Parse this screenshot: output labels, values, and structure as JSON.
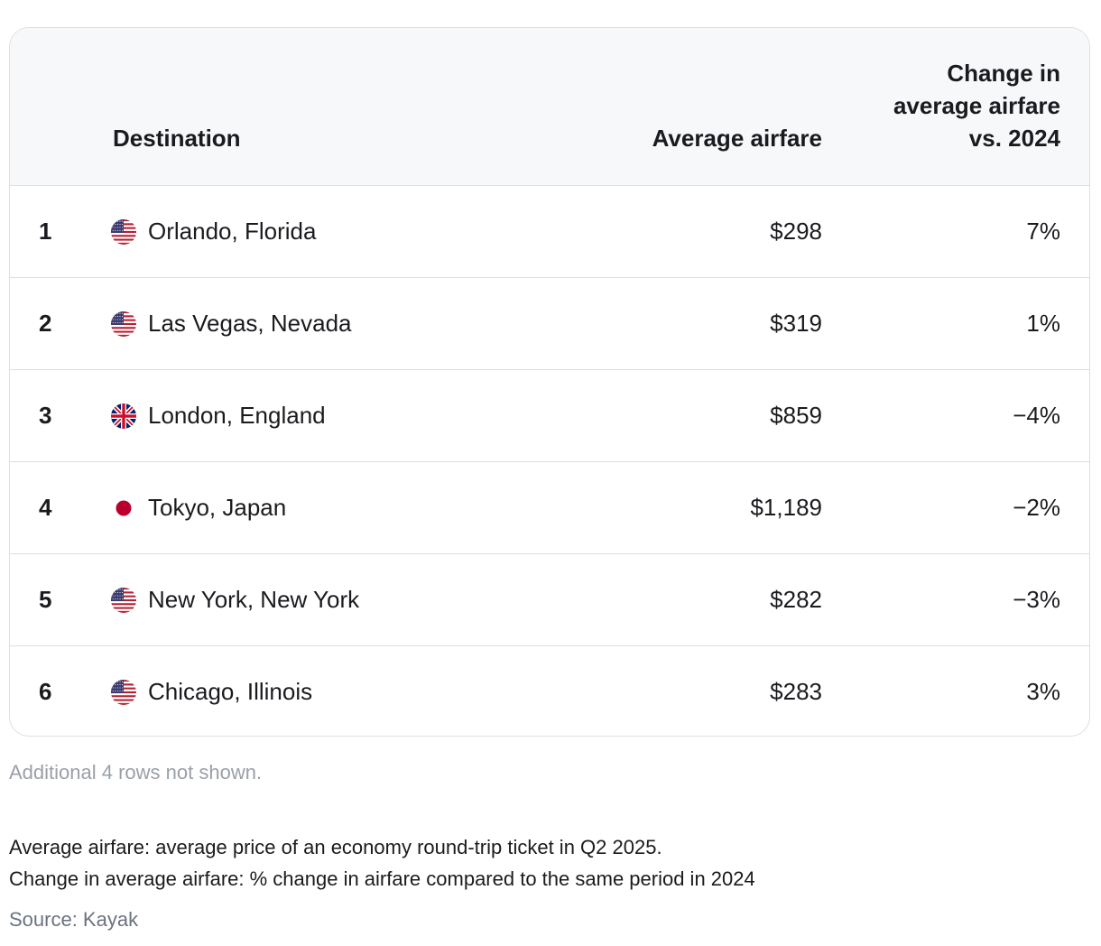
{
  "chart_data": {
    "type": "table",
    "columns": [
      "",
      "Destination",
      "Average airfare",
      "Change in average airfare vs. 2024"
    ],
    "header": {
      "destination": "Destination",
      "average_airfare": "Average airfare",
      "change_line1": "Change in",
      "change_line2": "average airfare",
      "change_line3": "vs. 2024"
    },
    "rows": [
      {
        "rank": "1",
        "flag": "us-flag-icon",
        "destination": "Orlando, Florida",
        "average_airfare": "$298",
        "change": "7%"
      },
      {
        "rank": "2",
        "flag": "us-flag-icon",
        "destination": "Las Vegas, Nevada",
        "average_airfare": "$319",
        "change": "1%"
      },
      {
        "rank": "3",
        "flag": "uk-flag-icon",
        "destination": "London, England",
        "average_airfare": "$859",
        "change": "−4%"
      },
      {
        "rank": "4",
        "flag": "japan-flag-icon",
        "destination": "Tokyo, Japan",
        "average_airfare": "$1,189",
        "change": "−2%"
      },
      {
        "rank": "5",
        "flag": "us-flag-icon",
        "destination": "New York, New York",
        "average_airfare": "$282",
        "change": "−3%"
      },
      {
        "rank": "6",
        "flag": "us-flag-icon",
        "destination": "Chicago, Illinois",
        "average_airfare": "$283",
        "change": "3%"
      }
    ]
  },
  "notes": {
    "rows_hidden": "Additional 4 rows not shown.",
    "footnote_1": "Average airfare: average price of an economy round-trip ticket in Q2 2025.",
    "footnote_2": "Change in average airfare: % change in airfare compared to the same period in 2024",
    "source": "Source: Kayak"
  },
  "colors": {
    "border": "#dcdfe3",
    "header_bg": "#f7f8fa",
    "text": "#1b1b1f",
    "muted": "#9aa0a8",
    "source": "#6b7280",
    "japan_red": "#bc002d",
    "us_red": "#b22234",
    "us_blue": "#3c3b6e",
    "uk_blue": "#012169",
    "uk_red": "#c8102e"
  }
}
